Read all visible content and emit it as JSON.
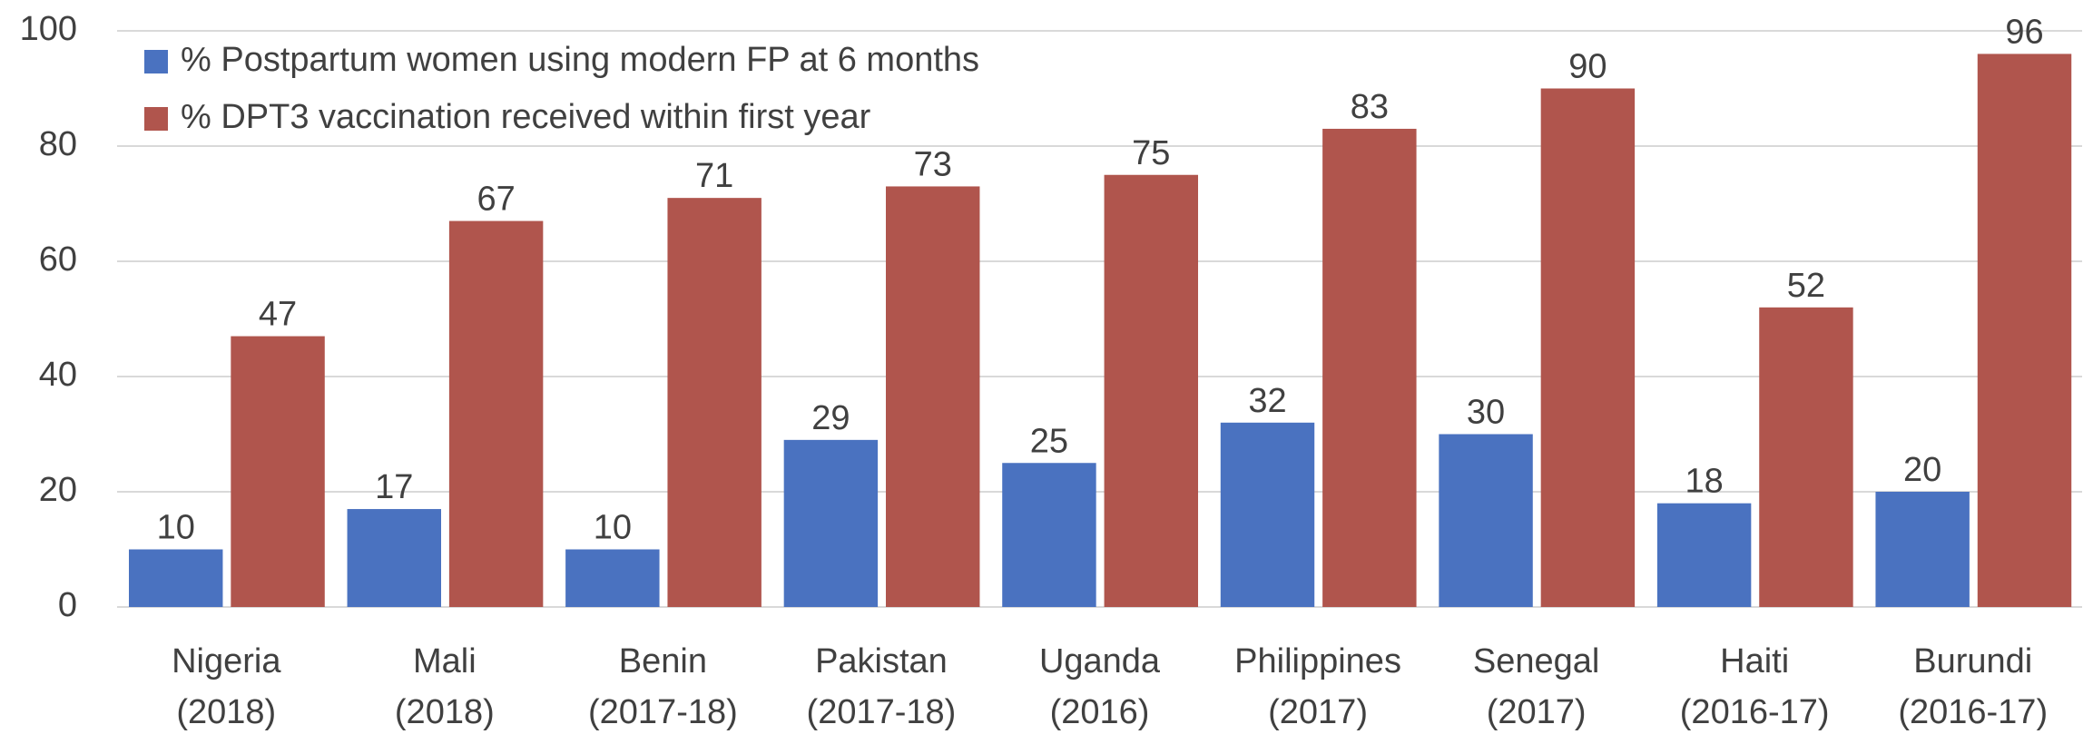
{
  "chart_data": {
    "type": "bar",
    "categories": [
      [
        "Nigeria",
        "(2018)"
      ],
      [
        "Mali",
        "(2018)"
      ],
      [
        "Benin",
        "(2017-18)"
      ],
      [
        "Pakistan",
        "(2017-18)"
      ],
      [
        "Uganda",
        "(2016)"
      ],
      [
        "Philippines",
        "(2017)"
      ],
      [
        "Senegal",
        "(2017)"
      ],
      [
        "Haiti",
        "(2016-17)"
      ],
      [
        "Burundi",
        "(2016-17)"
      ]
    ],
    "series": [
      {
        "name": "% Postpartum women using modern FP at 6 months",
        "color": "#4a72c0",
        "values": [
          10,
          17,
          10,
          29,
          25,
          32,
          30,
          18,
          20
        ]
      },
      {
        "name": "% DPT3 vaccination received within first year",
        "color": "#b0554d",
        "values": [
          47,
          67,
          71,
          73,
          75,
          83,
          90,
          52,
          96
        ]
      }
    ],
    "ylim": [
      0,
      100
    ],
    "yticks": [
      0,
      20,
      40,
      60,
      80,
      100
    ],
    "grid": true,
    "legend": "top-left"
  }
}
